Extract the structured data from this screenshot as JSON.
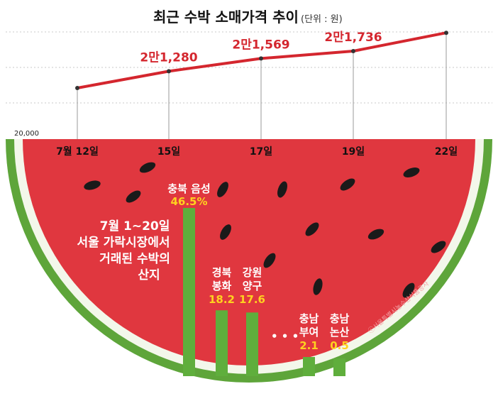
{
  "chart_data": [
    {
      "type": "line",
      "title": "최근 수박 소매가격 추이",
      "unit_note": "(단위 : 원)",
      "axis_min_label": "20,000",
      "x": [
        "7월 12일",
        "15일",
        "17일",
        "19일",
        "22일"
      ],
      "values": [
        20900,
        21280,
        21569,
        21736,
        22150
      ],
      "data_labels": [
        "",
        "2만1,280",
        "2만1,569",
        "2만1,736",
        ""
      ],
      "ylim": [
        20000,
        22250
      ],
      "color": "#d4262e"
    },
    {
      "type": "bar",
      "description": [
        "7월 1~20일",
        "서울 가락시장에서",
        "거래된 수박의",
        "산지"
      ],
      "categories": [
        [
          "충북 음성"
        ],
        [
          "경북",
          "봉화"
        ],
        [
          "강원",
          "양구"
        ],
        [
          "충남",
          "부여"
        ],
        [
          "충남",
          "논산"
        ]
      ],
      "values": [
        46.5,
        18.2,
        17.6,
        2.1,
        0.5
      ],
      "value_labels": [
        "46.5%",
        "18.2",
        "17.6",
        "2.1",
        "0.5"
      ],
      "ellipsis": "• • •",
      "unit": "%",
      "color": "#5fae3c"
    }
  ],
  "credit": "ⓒ서울특별시농수산식품공사",
  "colors": {
    "flesh": "#e0373f",
    "rind_light": "#f3f7ea",
    "rind_green": "#5ea53a",
    "seed": "#1a1a1a",
    "line": "#d4262e",
    "bar": "#5fae3c",
    "value_text": "#ffd21f"
  }
}
